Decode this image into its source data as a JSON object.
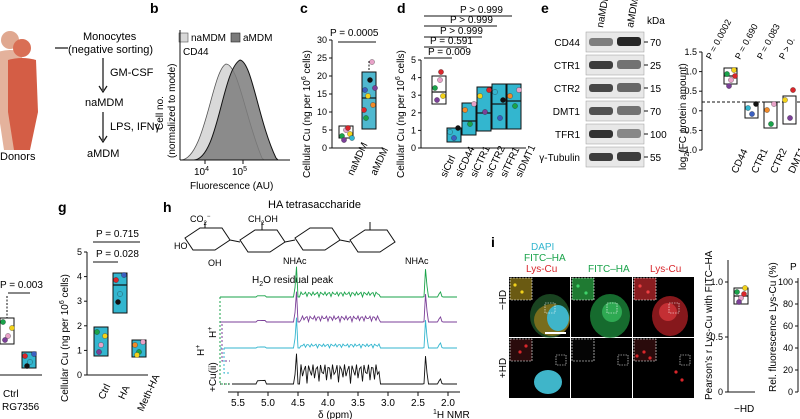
{
  "panel_labels": {
    "b": "b",
    "c": "c",
    "d": "d",
    "e": "e",
    "g": "g",
    "h": "h",
    "i": "i"
  },
  "colors": {
    "dark_bar": "#111111",
    "cyan": "#33b6cf",
    "green": "#1aa34a",
    "purple": "#7b3f98",
    "red": "#d9262b",
    "teal": "#5cc3cf",
    "tan": "#d8a37a"
  },
  "panel_a": {
    "donors_label": "Donors",
    "monocytes": "Monocytes",
    "neg_sorting": "(negative sorting)",
    "gmcsf": "GM-CSF",
    "namdm": "naMDM",
    "lps": "LPS, IFNγ",
    "amdm": "aMDM"
  },
  "panel_b": {
    "legend_na": "naMDM",
    "legend_a": "aMDM",
    "marker": "CD44",
    "ylabel_1": "Cell no.",
    "ylabel_2": "(normalized to mode)",
    "xlabel": "Fluorescence (AU)",
    "tick_1": "10",
    "tick_1_exp": "4",
    "tick_2": "10",
    "tick_2_exp": "5"
  },
  "panel_c": {
    "pvalue": "P = 0.0005",
    "ylabel": "Cellular Cu (ng per 10",
    "ylabel_exp": "6",
    "ylabel_end": " cells)",
    "yticks": [
      "0",
      "5",
      "10",
      "15",
      "20",
      "25",
      "30"
    ],
    "categories": [
      "naMDM",
      "aMDM"
    ]
  },
  "panel_d": {
    "pvalues": [
      "P > 0.999",
      "P > 0.999",
      "P > 0.999",
      "P = 0.591",
      "P = 0.009"
    ],
    "ylabel": "Cellular Cu (ng per 10",
    "ylabel_exp": "6",
    "ylabel_end": " cells)",
    "yticks": [
      "0",
      "1",
      "2",
      "3",
      "4",
      "5"
    ],
    "categories": [
      "siCtrl",
      "siCD44",
      "siCTR1",
      "siCTR2",
      "siTFR1",
      "siDMT1"
    ]
  },
  "panel_e": {
    "lane_labels": [
      "naMDM",
      "aMDM"
    ],
    "kda": "kDa",
    "bands": [
      {
        "name": "CD44",
        "kda": "70"
      },
      {
        "name": "CTR1",
        "kda": "25"
      },
      {
        "name": "CTR2",
        "kda": "15"
      },
      {
        "name": "DMT1",
        "kda": "70"
      },
      {
        "name": "TFR1",
        "kda": "100"
      },
      {
        "name": "γ-Tubulin",
        "kda": "55"
      }
    ],
    "pvalues": [
      "P = 0.0002",
      "P = 0.690",
      "P = 0.083",
      "P > 0."
    ],
    "ylabel": "log",
    "ylabel_sub": "2",
    "ylabel_end": "(FC protein amount)",
    "yticks": [
      "1.5",
      "1.0",
      "0.5",
      "0",
      "−0.5",
      "−1.0"
    ],
    "categories": [
      "CD44",
      "CTR1",
      "CTR2",
      "DMT1",
      "TFR"
    ]
  },
  "panel_f": {
    "pvalue": "P = 0.003",
    "categories": [
      "Ctrl",
      "RG7356"
    ]
  },
  "panel_g": {
    "pvalues": [
      "P = 0.715",
      "P = 0.028"
    ],
    "ylabel": "Cellular Cu (ng per 10",
    "ylabel_exp": "6",
    "ylabel_end": " cells)",
    "yticks": [
      "0",
      "1",
      "2",
      "3",
      "4",
      "5"
    ],
    "categories": [
      "Ctrl",
      "HA",
      "Meth-HA"
    ]
  },
  "panel_h": {
    "title": "HA tetrasaccharide",
    "residual": "H",
    "residual_sub": "2",
    "residual_end": "O residual peak",
    "chem": {
      "co2": "CO",
      "co2_sub": "2",
      "co2_sup": "−",
      "ch2oh": "CH",
      "ch2oh_sub": "2",
      "ch2oh_end": "OH",
      "nhac": "NHAc",
      "oh": "OH",
      "ho": "HO",
      "o": "O"
    },
    "xticks": [
      "5.5",
      "5.0",
      "4.5",
      "4.0",
      "3.5",
      "3.0",
      "2.5",
      "2.0"
    ],
    "xlabel": "δ (ppm)",
    "nmr": "1H NMR",
    "nmr_sup": "1",
    "nmr_end": "H NMR",
    "hplus_1": "H",
    "hplus_2": "H",
    "cu": "+Cu(ii)",
    "plus": "+"
  },
  "panel_i": {
    "col_1_a": "DAPI",
    "col_1_b": "FITC–HA",
    "col_1_c": "Lys-Cu",
    "col_2": "FITC–HA",
    "col_3": "Lys-Cu",
    "row_1": "−HD",
    "row_2": "+HD",
    "side_ylabel": "Pearson's r Lys-Cu with FITC–HA",
    "side_yticks": [
      "1.0",
      "0.5",
      "0"
    ],
    "side_cat": "−HD",
    "side2_ylabel": "Rel. fluorescence Lys-Cu (%)",
    "side2_yticks": [
      "100",
      "80",
      "60",
      "40",
      "20",
      "0"
    ],
    "side2_p": "P"
  }
}
